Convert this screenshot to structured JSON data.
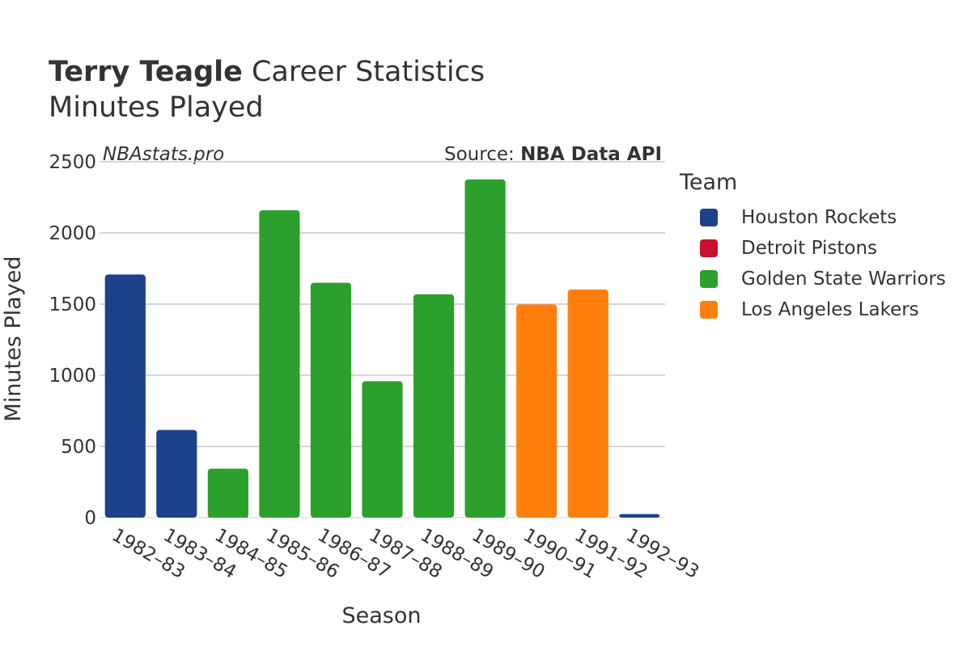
{
  "header": {
    "player": "Terry Teagle",
    "title_rest": " Career Statistics",
    "subtitle": "Minutes Played"
  },
  "watermark": "NBAstats.pro",
  "source": {
    "prefix": "Source: ",
    "name": "NBA Data API"
  },
  "legend": {
    "title": "Team",
    "items": [
      {
        "label": "Houston Rockets",
        "color": "#1d428a"
      },
      {
        "label": "Detroit Pistons",
        "color": "#c8102e"
      },
      {
        "label": "Golden State Warriors",
        "color": "#2ca02c"
      },
      {
        "label": "Los Angeles Lakers",
        "color": "#ff7f0e"
      }
    ]
  },
  "chart_data": {
    "type": "bar",
    "xlabel": "Season",
    "ylabel": "Minutes Played",
    "ylim": [
      0,
      2500
    ],
    "yticks": [
      0,
      500,
      1000,
      1500,
      2000,
      2500
    ],
    "grid": true,
    "legend_position": "right",
    "categories": [
      "1982–83",
      "1983–84",
      "1984–85",
      "1985–86",
      "1986–87",
      "1987–88",
      "1988–89",
      "1989–90",
      "1990–91",
      "1991–92",
      "1992–93"
    ],
    "bars": [
      {
        "category": "1982–83",
        "team": "Houston Rockets",
        "value": 1708
      },
      {
        "category": "1983–84",
        "team": "Houston Rockets",
        "value": 616
      },
      {
        "category": "1984–85",
        "team": "Detroit Pistons",
        "value": 5
      },
      {
        "category": "1984–85",
        "team": "Golden State Warriors",
        "value": 344
      },
      {
        "category": "1985–86",
        "team": "Golden State Warriors",
        "value": 2159
      },
      {
        "category": "1986–87",
        "team": "Golden State Warriors",
        "value": 1650
      },
      {
        "category": "1987–88",
        "team": "Golden State Warriors",
        "value": 958
      },
      {
        "category": "1988–89",
        "team": "Golden State Warriors",
        "value": 1569
      },
      {
        "category": "1989–90",
        "team": "Golden State Warriors",
        "value": 2376
      },
      {
        "category": "1990–91",
        "team": "Los Angeles Lakers",
        "value": 1498
      },
      {
        "category": "1991–92",
        "team": "Los Angeles Lakers",
        "value": 1602
      },
      {
        "category": "1992–93",
        "team": "Houston Rockets",
        "value": 25
      }
    ]
  }
}
